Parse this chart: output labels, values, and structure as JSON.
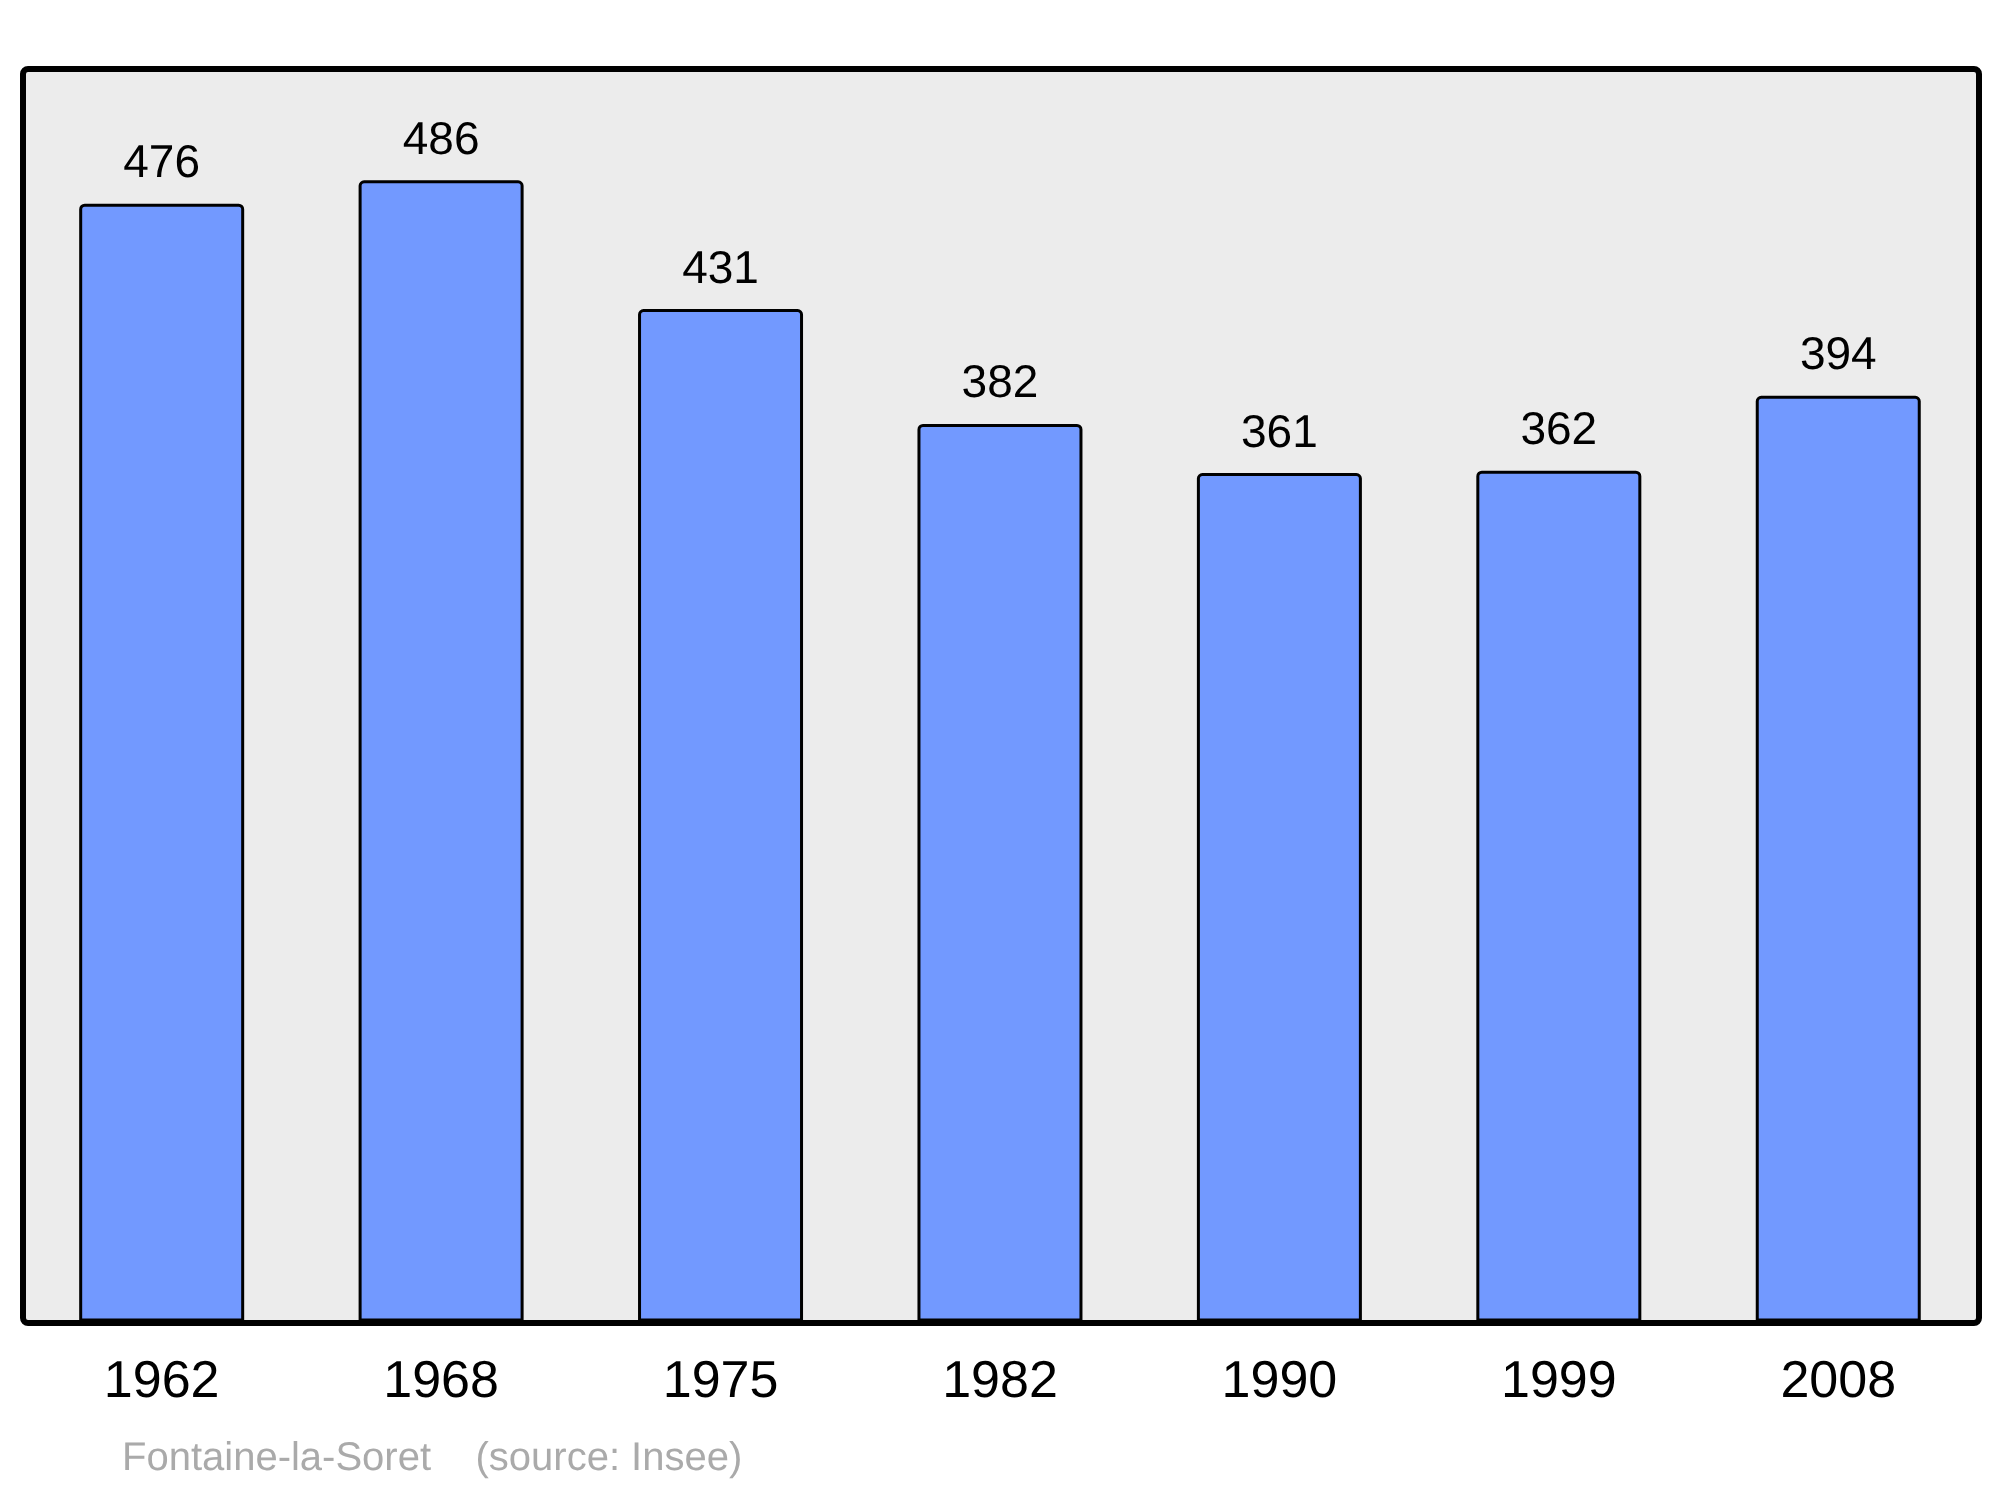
{
  "chart_data": {
    "type": "bar",
    "categories": [
      "1962",
      "1968",
      "1975",
      "1982",
      "1990",
      "1999",
      "2008"
    ],
    "values": [
      476,
      486,
      431,
      382,
      361,
      362,
      394
    ],
    "color": "#7299ff",
    "data_labels": true,
    "annotations": [
      "Fontaine-la-Soret    (source: Insee)"
    ]
  }
}
